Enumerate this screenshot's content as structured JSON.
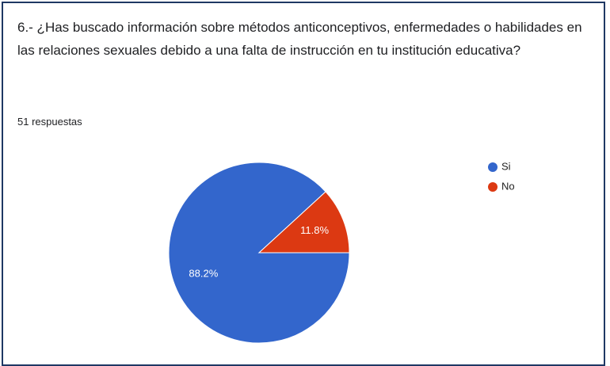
{
  "chart_data": {
    "type": "pie",
    "title": "6.- ¿Has buscado información sobre métodos anticonceptivos, enfermedades o habilidades en las relaciones sexuales debido a una falta de instrucción en tu institución educativa?",
    "subtitle": "51 respuestas",
    "categories": [
      "Si",
      "No"
    ],
    "values": [
      88.2,
      11.8
    ],
    "value_labels": [
      "88.2%",
      "11.8%"
    ],
    "colors": [
      "#3366cc",
      "#dc3912"
    ],
    "legend": "right"
  }
}
